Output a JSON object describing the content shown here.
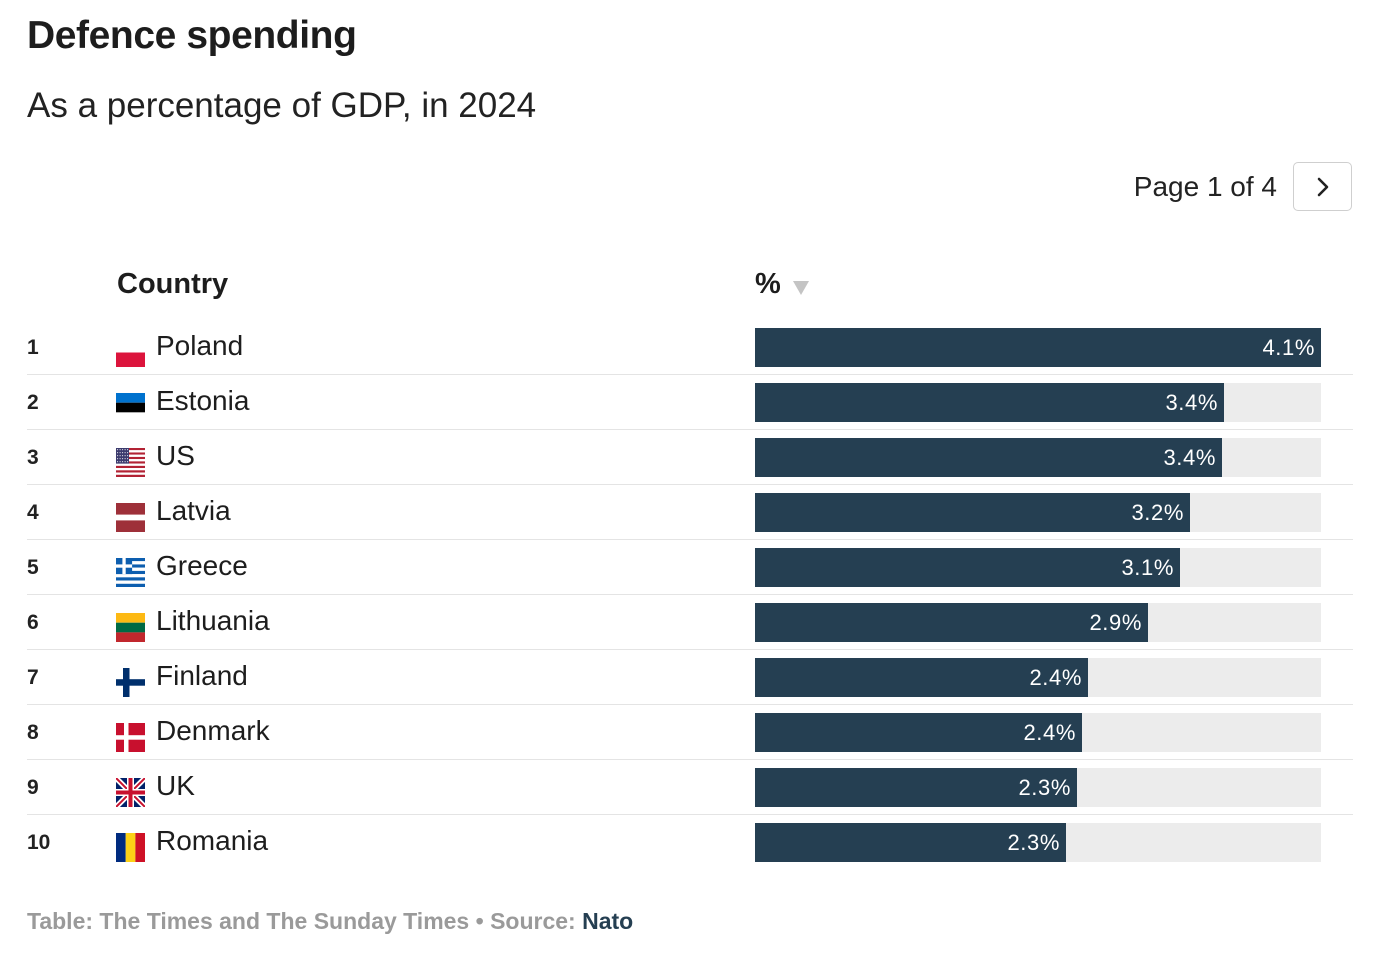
{
  "title": "Defence spending",
  "subtitle": "As a percentage of GDP, in 2024",
  "pager": {
    "label": "Page 1 of 4",
    "next_icon": "chevron-right-icon"
  },
  "columns": {
    "country": "Country",
    "value": "%"
  },
  "colors": {
    "bar": "#253f52",
    "track": "#ececec",
    "source_link": "#253f52"
  },
  "chart_data": {
    "type": "bar",
    "orientation": "horizontal",
    "title": "Defence spending",
    "subtitle": "As a percentage of GDP, in 2024",
    "xlim": [
      0,
      4.1
    ],
    "rows": [
      {
        "rank": "1",
        "country": "Poland",
        "flag": "poland-flag-icon",
        "value": 4.1,
        "label": "4.1%"
      },
      {
        "rank": "2",
        "country": "Estonia",
        "flag": "estonia-flag-icon",
        "value": 3.4,
        "label": "3.4%"
      },
      {
        "rank": "3",
        "country": "US",
        "flag": "us-flag-icon",
        "value": 3.38,
        "label": "3.4%"
      },
      {
        "rank": "4",
        "country": "Latvia",
        "flag": "latvia-flag-icon",
        "value": 3.15,
        "label": "3.2%"
      },
      {
        "rank": "5",
        "country": "Greece",
        "flag": "greece-flag-icon",
        "value": 3.08,
        "label": "3.1%"
      },
      {
        "rank": "6",
        "country": "Lithuania",
        "flag": "lithuania-flag-icon",
        "value": 2.85,
        "label": "2.9%"
      },
      {
        "rank": "7",
        "country": "Finland",
        "flag": "finland-flag-icon",
        "value": 2.41,
        "label": "2.4%"
      },
      {
        "rank": "8",
        "country": "Denmark",
        "flag": "denmark-flag-icon",
        "value": 2.37,
        "label": "2.4%"
      },
      {
        "rank": "9",
        "country": "UK",
        "flag": "uk-flag-icon",
        "value": 2.33,
        "label": "2.3%"
      },
      {
        "rank": "10",
        "country": "Romania",
        "flag": "romania-flag-icon",
        "value": 2.25,
        "label": "2.3%"
      }
    ]
  },
  "footer": {
    "credit": "Table: The Times and The Sunday Times",
    "separator": " • ",
    "source_label": "Source: ",
    "source_name": "Nato"
  }
}
